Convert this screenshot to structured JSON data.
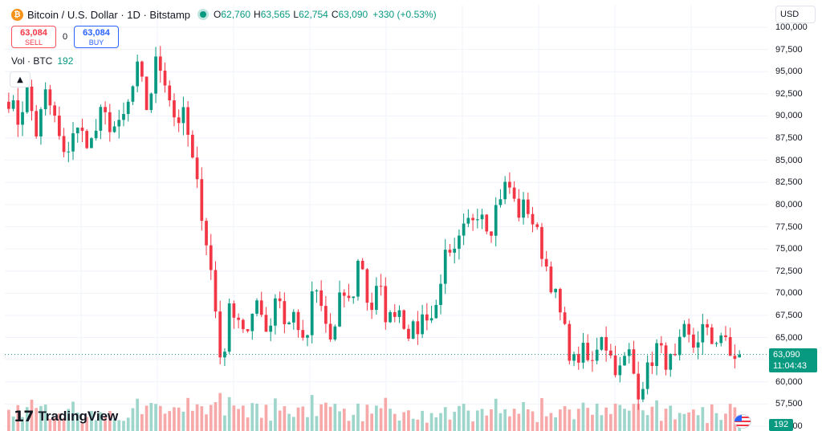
{
  "header": {
    "symbol_title": "Bitcoin / U.S. Dollar · 1D · Bitstamp",
    "ohlc": [
      {
        "k": "O",
        "v": "62,760"
      },
      {
        "k": "H",
        "v": "63,565"
      },
      {
        "k": "L",
        "v": "62,754"
      },
      {
        "k": "C",
        "v": "63,090"
      }
    ],
    "change": "+330 (+0.53%)"
  },
  "trade": {
    "sell_price": "63,084",
    "sell_label": "SELL",
    "spread": "0",
    "buy_price": "63,084",
    "buy_label": "BUY"
  },
  "volume_legend": {
    "label": "Vol · BTC",
    "value": "192"
  },
  "currency": "USD",
  "price_axis": {
    "labels": [
      "100,000",
      "97,500",
      "95,000",
      "92,500",
      "90,000",
      "87,500",
      "85,000",
      "82,500",
      "80,000",
      "77,500",
      "75,000",
      "72,500",
      "70,000",
      "67,500",
      "65,000",
      "62,500",
      "60,000",
      "57,500",
      "55,000"
    ]
  },
  "last_price": {
    "price": "63,090",
    "countdown": "11:04:43"
  },
  "last_volume": "192",
  "brand": "TradingView",
  "colors": {
    "up": "#089981",
    "down": "#f23645",
    "up_vol": "#9fd6cc",
    "down_vol": "#f7a9a9",
    "grid": "#f0f3fa"
  },
  "chart_data": {
    "type": "candlestick",
    "ylim": [
      55000,
      100000
    ],
    "last_price": 63090,
    "series": [
      {
        "name": "candles",
        "close_path": [
          92000,
          89500,
          92800,
          88000,
          92500,
          89500,
          85000,
          88500,
          87800,
          87000,
          90200,
          89000,
          88500,
          91500,
          95500,
          90500,
          96500,
          94000,
          89500,
          90000,
          84000,
          78500,
          71500,
          61500,
          69000,
          67000,
          65000,
          70000,
          65000,
          70800,
          66000,
          68000,
          63000,
          71000,
          67500,
          64000,
          70500,
          68500,
          75000,
          67500,
          71000,
          66500,
          69000,
          66000,
          65500,
          68000,
          67000,
          74000,
          73500,
          76500,
          78500,
          80000,
          77000,
          81000,
          82500,
          79000,
          80000,
          77000,
          73500,
          70000,
          66000,
          62000,
          63500,
          61500,
          66000,
          63000,
          61000,
          63500,
          59000,
          61000,
          64000,
          62500,
          62000,
          65500,
          64000,
          66000,
          64500,
          65500,
          62800,
          63090
        ],
        "count": 160
      }
    ],
    "volume_max": 195
  }
}
